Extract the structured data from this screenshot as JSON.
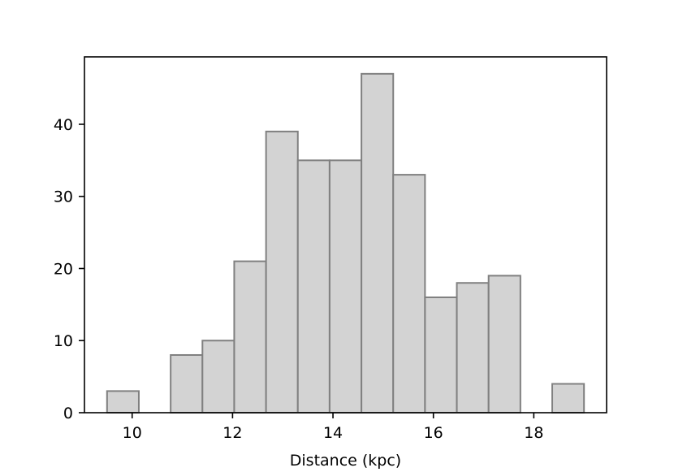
{
  "chart_data": {
    "type": "bar",
    "subtype": "histogram",
    "title": "",
    "xlabel": "Distance (kpc)",
    "ylabel": "",
    "xlim": [
      9.05,
      19.45
    ],
    "ylim": [
      0,
      49.35
    ],
    "xticks": [
      10,
      12,
      14,
      16,
      18
    ],
    "yticks": [
      0,
      10,
      20,
      30,
      40
    ],
    "bin_edges": [
      9.5,
      10.133,
      10.767,
      11.4,
      12.033,
      12.667,
      13.3,
      13.933,
      14.567,
      15.2,
      15.833,
      16.467,
      17.1,
      17.733,
      18.367,
      19.0
    ],
    "values": [
      3,
      0,
      8,
      10,
      21,
      39,
      35,
      35,
      47,
      33,
      16,
      18,
      19,
      0,
      4
    ],
    "bar_fill": "#d3d3d3",
    "bar_edge": "#808080",
    "grid": false,
    "legend": false
  }
}
